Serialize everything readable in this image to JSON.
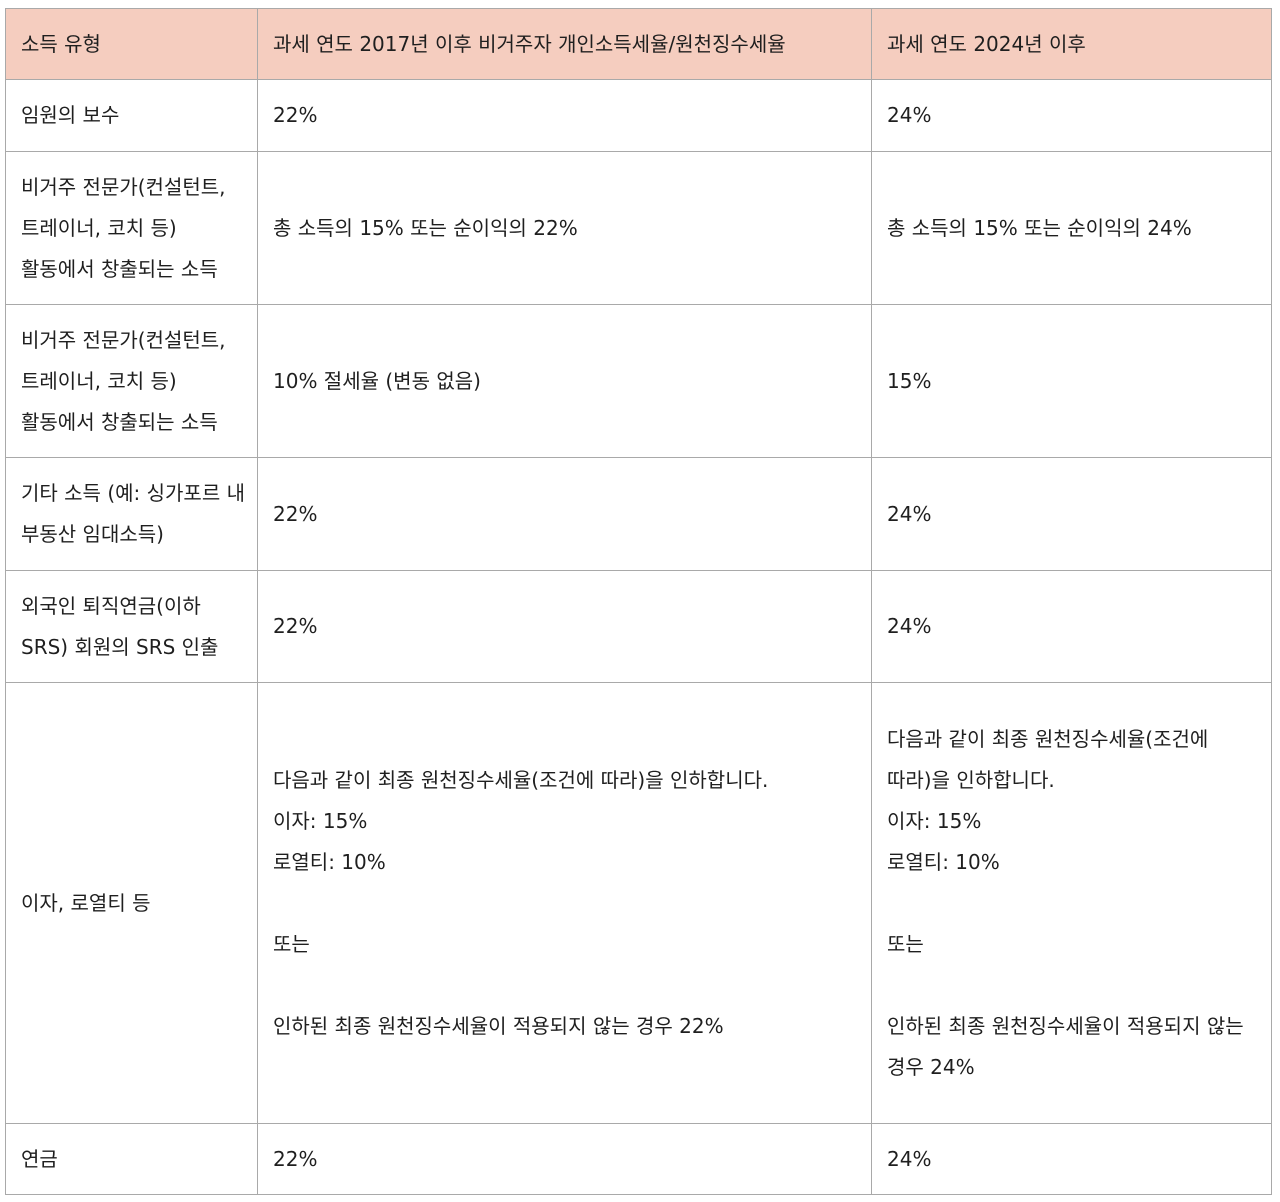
{
  "columns": [
    "소득 유형",
    "과세 연도 2017년 이후 비거주자 개인소득세율/원천징수세율",
    "과세 연도 2024년 이후"
  ],
  "rows": [
    {
      "type": "임원의 보수",
      "rate_2017": "22%",
      "rate_2024": "24%"
    },
    {
      "type": "비거주 전문가(컨설턴트, 트레이너, 코치 등) 활동에서 창출되는 소득",
      "rate_2017": "총 소득의 15% 또는 순이익의 22%",
      "rate_2024": "총 소득의 15% 또는 순이익의 24%"
    },
    {
      "type": "비거주 전문가(컨설턴트, 트레이너, 코치 등) 활동에서 창출되는 소득",
      "rate_2017": "10% 절세율 (변동 없음)",
      "rate_2024": "15%"
    },
    {
      "type": "기타 소득 (예: 싱가포르 내 부동산 임대소득)",
      "rate_2017": "22%",
      "rate_2024": "24%"
    },
    {
      "type": "외국인 퇴직연금(이하 SRS) 회원의 SRS 인출",
      "rate_2017": "22%",
      "rate_2024": "24%"
    },
    {
      "type": "이자, 로열티 등",
      "rate_2017": "다음과 같이 최종 원천징수세율(조건에 따라)을 인하합니다.\n이자: 15%\n로열티: 10%\n\n또는\n\n인하된 최종 원천징수세율이 적용되지 않는 경우 22%",
      "rate_2024": "다음과 같이 최종 원천징수세율(조건에 따라)을 인하합니다.\n이자: 15%\n로열티: 10%\n\n또는\n\n인하된 최종 원천징수세율이 적용되지 않는 경우 24%"
    },
    {
      "type": "연금",
      "rate_2017": "22%",
      "rate_2024": "24%"
    }
  ],
  "colors": {
    "header_bg": "#f5cdbf",
    "border": "#a9a9a9",
    "text": "#1f1f1f"
  }
}
